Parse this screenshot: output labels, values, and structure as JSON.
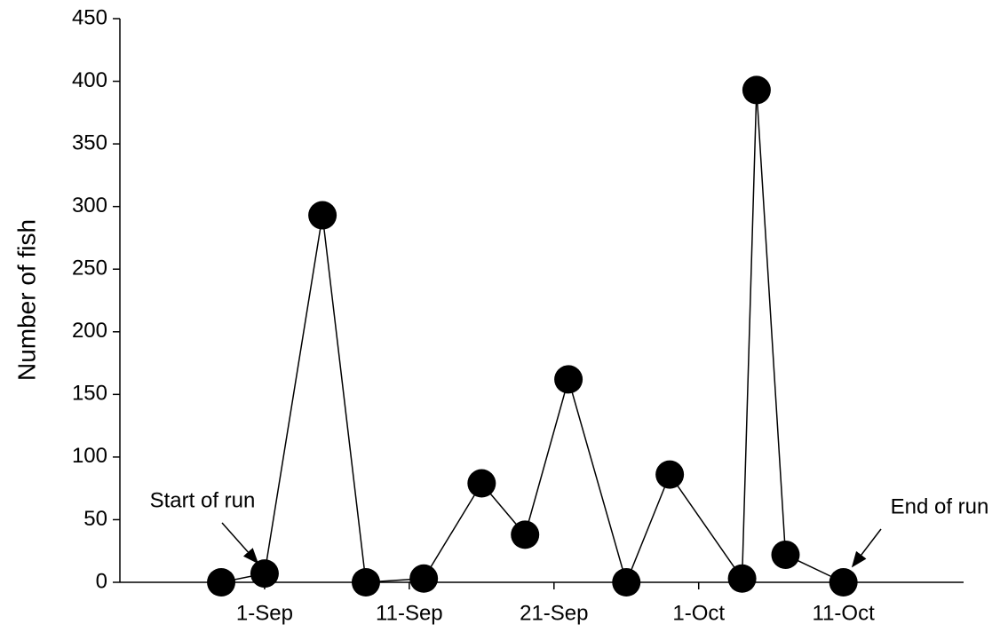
{
  "chart_data": {
    "type": "line",
    "y_label": "Number of fish",
    "x": [
      "29-Aug",
      "1-Sep",
      "5-Sep",
      "8-Sep",
      "12-Sep",
      "16-Sep",
      "19-Sep",
      "22-Sep",
      "26-Sep",
      "29-Sep",
      "4-Oct",
      "5-Oct",
      "7-Oct",
      "11-Oct"
    ],
    "series": [
      {
        "name": "Number of fish",
        "color": "#000000",
        "values": [
          0,
          7,
          293,
          0,
          3,
          79,
          38,
          162,
          0,
          86,
          3,
          393,
          22,
          0
        ]
      }
    ],
    "xlim": [
      "22-Aug",
      "19-Oct"
    ],
    "xticks": [
      "1-Sep",
      "11-Sep",
      "21-Sep",
      "1-Oct",
      "11-Oct"
    ],
    "ylim": [
      0,
      450
    ],
    "yticks": [
      0,
      50,
      100,
      150,
      200,
      250,
      300,
      350,
      400,
      450
    ],
    "annotations": [
      "Start of run",
      "End of run"
    ]
  }
}
